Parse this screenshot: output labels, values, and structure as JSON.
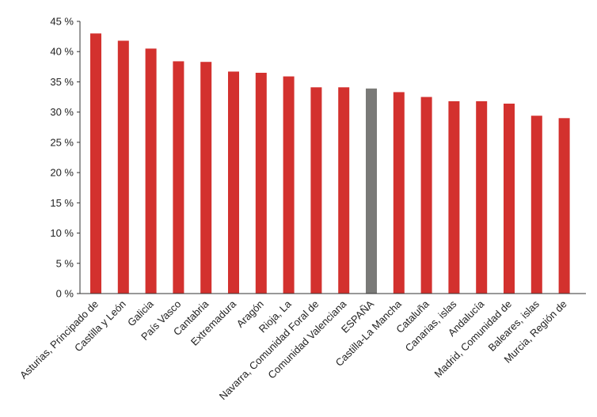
{
  "chart_data": {
    "type": "bar",
    "title": "",
    "xlabel": "",
    "ylabel": "",
    "ylim": [
      0,
      45
    ],
    "yticks": [
      0,
      5,
      10,
      15,
      20,
      25,
      30,
      35,
      40,
      45
    ],
    "ytick_suffix": " %",
    "grid": false,
    "legend": "none",
    "categories": [
      "Asturias, Principado de",
      "Castilla y León",
      "Galicia",
      "País Vasco",
      "Cantabria",
      "Extremadura",
      "Aragón",
      "Rioja, La",
      "Navarra, Comunidad Foral de",
      "Comunidad Valenciana",
      "ESPAÑA",
      "Castilla-La Mancha",
      "Cataluña",
      "Canarias, islas",
      "Andalucía",
      "Madrid, Comunidad de",
      "Baleares, islas",
      "Murcia, Región de"
    ],
    "values": [
      43.0,
      41.8,
      40.5,
      38.4,
      38.3,
      36.7,
      36.5,
      35.9,
      34.1,
      34.1,
      33.9,
      33.3,
      32.5,
      31.8,
      31.8,
      31.4,
      29.4,
      29.0
    ],
    "highlight": "ESPAÑA",
    "colors": {
      "bar": "#d3312e",
      "highlight": "#7a7a78",
      "axis": "#333333",
      "text": "#222222"
    }
  }
}
